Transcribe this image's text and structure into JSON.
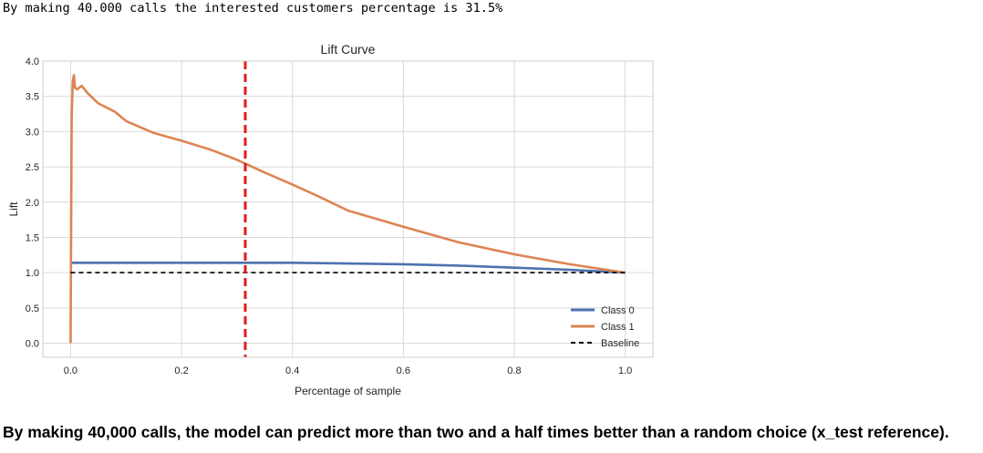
{
  "output_line": "By making 40.000 calls the interested customers percentage is 31.5%",
  "caption": "By making 40,000 calls, the model can predict more than two and a half times better than a random choice (x_test reference).",
  "chart_data": {
    "type": "line",
    "title": "Lift Curve",
    "xlabel": "Percentage of sample",
    "ylabel": "Lift",
    "xlim": [
      -0.05,
      1.05
    ],
    "ylim": [
      -0.2,
      4.0
    ],
    "xticks": [
      0.0,
      0.2,
      0.4,
      0.6,
      0.8,
      1.0
    ],
    "xtick_labels": [
      "0.0",
      "0.2",
      "0.4",
      "0.6",
      "0.8",
      "1.0"
    ],
    "yticks": [
      0.0,
      0.5,
      1.0,
      1.5,
      2.0,
      2.5,
      3.0,
      3.5,
      4.0
    ],
    "ytick_labels": [
      "0.0",
      "0.5",
      "1.0",
      "1.5",
      "2.0",
      "2.5",
      "3.0",
      "3.5",
      "4.0"
    ],
    "grid": true,
    "legend_position": "lower-right",
    "vline": {
      "x": 0.315,
      "color": "#e41a1c",
      "style": "dashed"
    },
    "series": [
      {
        "name": "Class 0",
        "color": "#4c72b0",
        "style": "solid",
        "x": [
          0.0,
          0.1,
          0.2,
          0.3,
          0.4,
          0.5,
          0.6,
          0.7,
          0.8,
          0.9,
          1.0
        ],
        "y": [
          1.14,
          1.14,
          1.14,
          1.14,
          1.14,
          1.13,
          1.12,
          1.1,
          1.07,
          1.04,
          1.0
        ]
      },
      {
        "name": "Class 1",
        "color": "#dd8452",
        "style": "solid",
        "x": [
          0.0,
          0.002,
          0.004,
          0.006,
          0.008,
          0.012,
          0.02,
          0.03,
          0.05,
          0.08,
          0.1,
          0.15,
          0.2,
          0.25,
          0.3,
          0.35,
          0.4,
          0.45,
          0.5,
          0.6,
          0.7,
          0.8,
          0.9,
          1.0
        ],
        "y": [
          0.0,
          3.2,
          3.72,
          3.8,
          3.62,
          3.6,
          3.65,
          3.55,
          3.4,
          3.28,
          3.15,
          2.98,
          2.87,
          2.75,
          2.6,
          2.42,
          2.25,
          2.07,
          1.88,
          1.65,
          1.43,
          1.26,
          1.12,
          1.0
        ]
      },
      {
        "name": "Baseline",
        "color": "#000000",
        "style": "dashed",
        "x": [
          0.0,
          1.0
        ],
        "y": [
          1.0,
          1.0
        ]
      }
    ]
  }
}
